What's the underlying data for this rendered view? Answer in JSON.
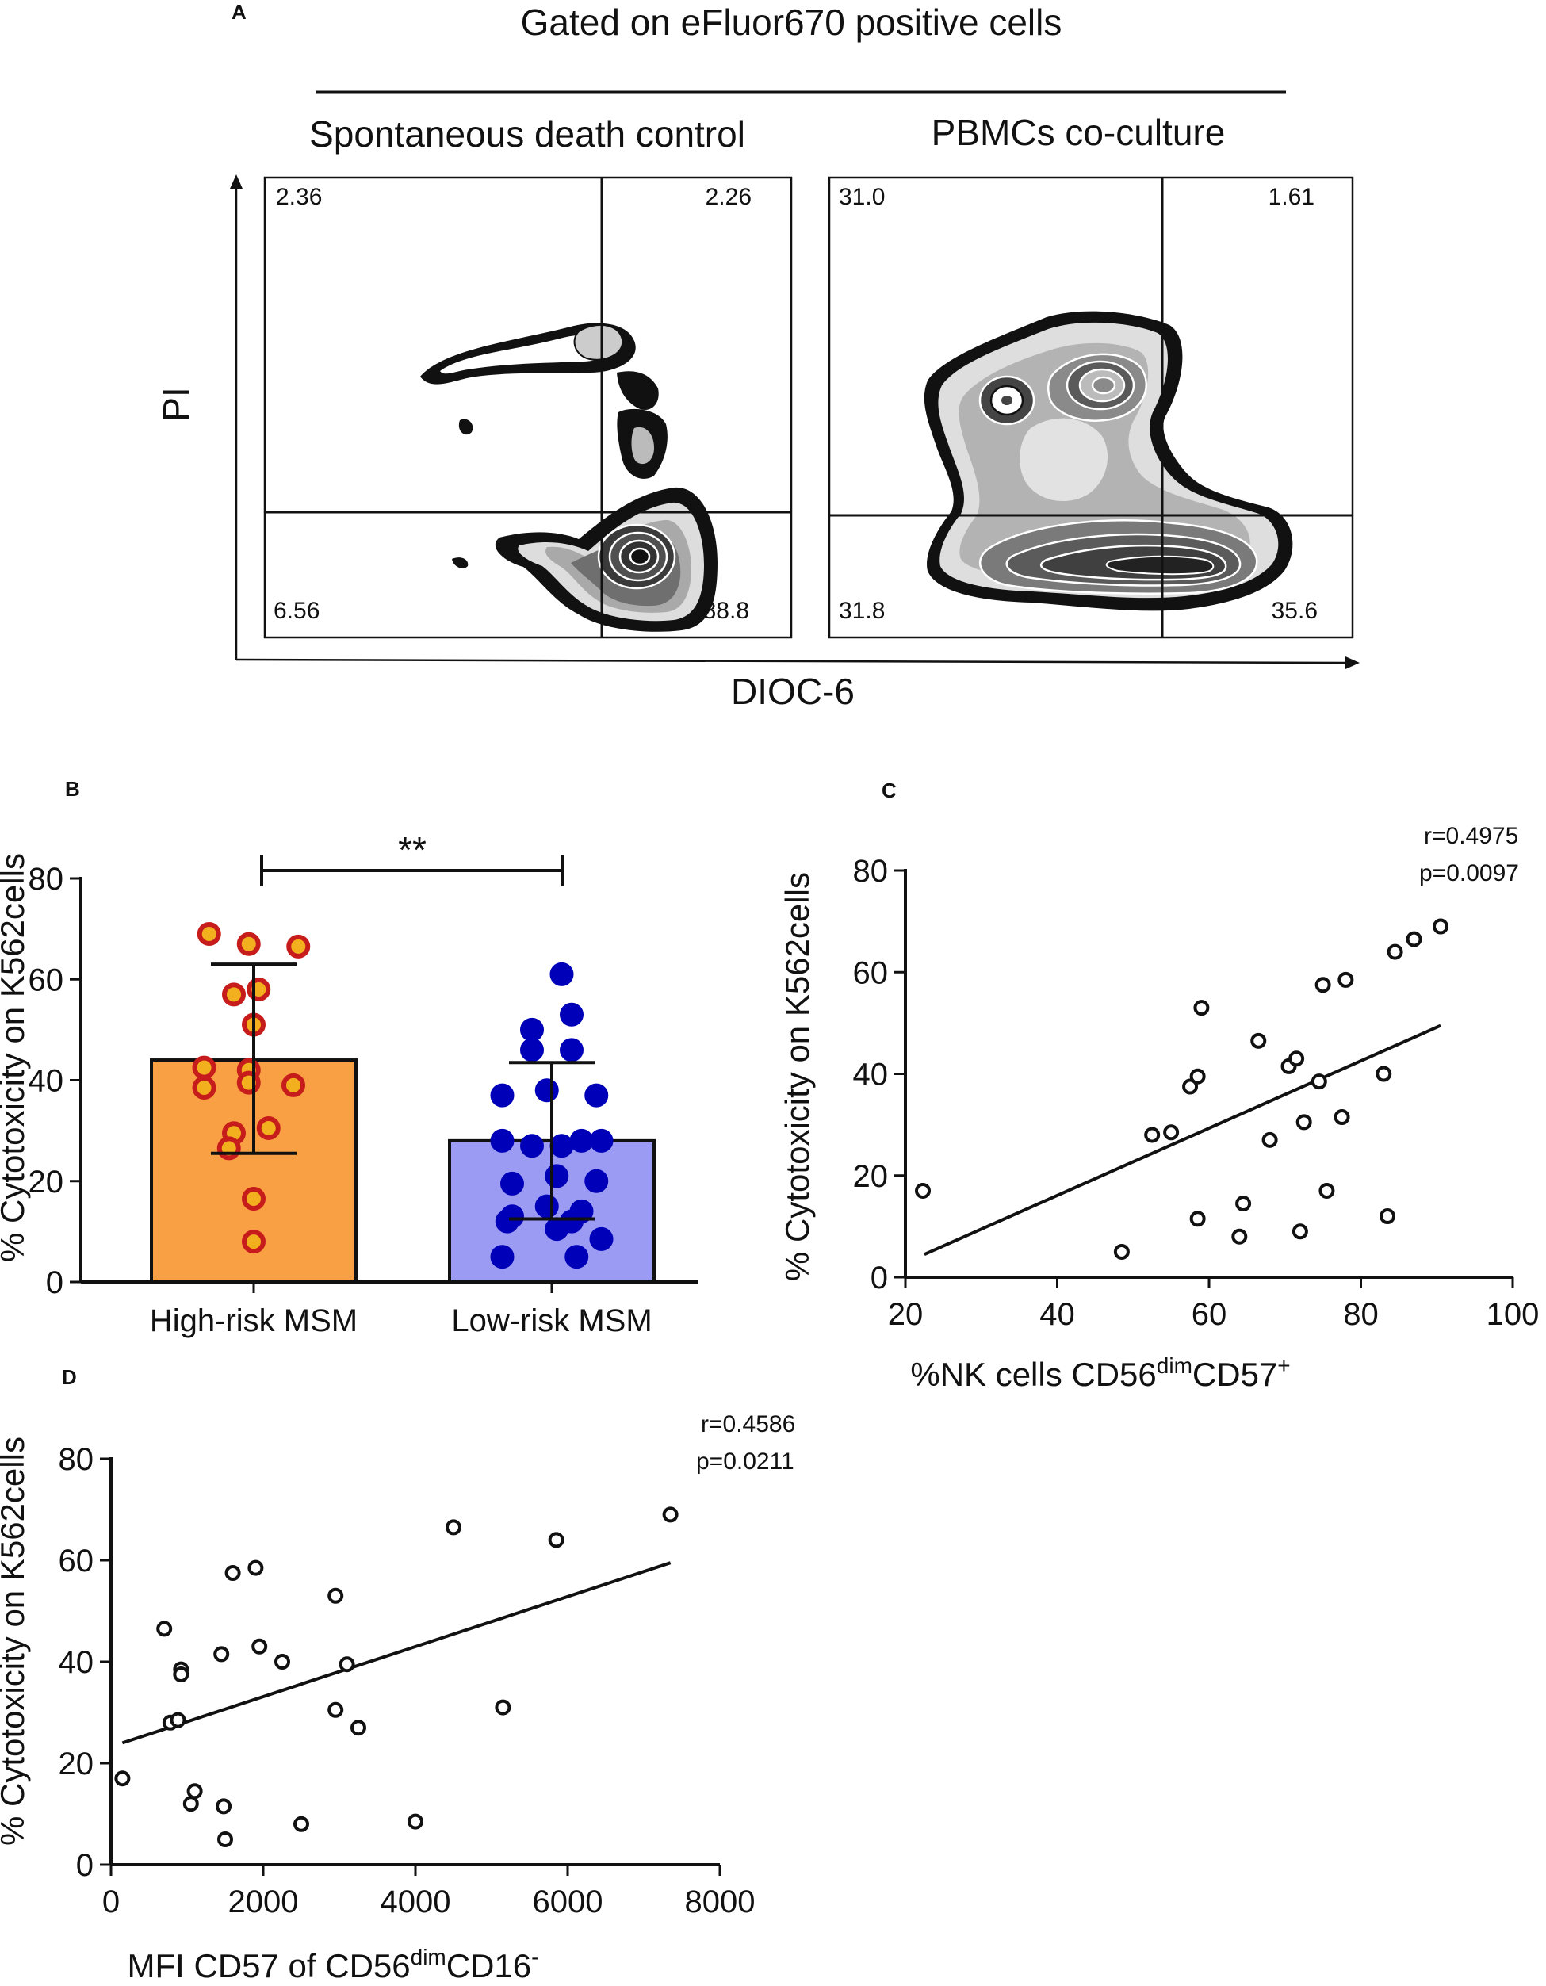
{
  "panel_a": {
    "letter": "A",
    "header": "Gated on eFluor670 positive cells",
    "left_title": "Spontaneous death  control",
    "right_title": "PBMCs co-culture",
    "y_axis": "PI",
    "x_axis": "DIOC-6",
    "left_quadrants": {
      "ul": "2.36",
      "ur": "2.26",
      "ll": "6.56",
      "lr": "88.8"
    },
    "right_quadrants": {
      "ul": "31.0",
      "ur": "1.61",
      "ll": "31.8",
      "lr": "35.6"
    }
  },
  "chart_data": [
    {
      "id": "B",
      "type": "bar",
      "letter": "B",
      "ylabel": "% Cytotoxicity on K562cells",
      "ylim": [
        0,
        80
      ],
      "yticks": [
        "0",
        "20",
        "40",
        "60",
        "80"
      ],
      "categories": [
        "High-risk MSM",
        "Low-risk MSM"
      ],
      "means": [
        44,
        28
      ],
      "sd_low": [
        25.5,
        12.5
      ],
      "sd_high": [
        63,
        43.5
      ],
      "bar_colors": [
        "#f9a044",
        "#9b9bf3"
      ],
      "significance": "**",
      "series": [
        {
          "name": "High-risk MSM",
          "color": "#c71c1c",
          "ring": "#f2b01e",
          "points": [
            [
              -0.45,
              69
            ],
            [
              -0.05,
              67
            ],
            [
              0.45,
              66.5
            ],
            [
              -0.2,
              57
            ],
            [
              0.05,
              58
            ],
            [
              0,
              51
            ],
            [
              -0.5,
              42.5
            ],
            [
              -0.05,
              42
            ],
            [
              -0.5,
              38.5
            ],
            [
              -0.05,
              39.5
            ],
            [
              0.4,
              39
            ],
            [
              0.15,
              30.5
            ],
            [
              -0.2,
              29.5
            ],
            [
              -0.25,
              26.5
            ],
            [
              0,
              16.5
            ],
            [
              0,
              8
            ]
          ]
        },
        {
          "name": "Low-risk MSM",
          "color": "#0000b8",
          "ring": "#0000b8",
          "points": [
            [
              0.1,
              61
            ],
            [
              -0.2,
              50
            ],
            [
              0.2,
              53
            ],
            [
              -0.2,
              46
            ],
            [
              0.2,
              46
            ],
            [
              -0.5,
              37
            ],
            [
              -0.05,
              38
            ],
            [
              0.45,
              37
            ],
            [
              -0.5,
              28
            ],
            [
              0.5,
              28
            ],
            [
              -0.2,
              27
            ],
            [
              0.1,
              27
            ],
            [
              0.3,
              28
            ],
            [
              -0.4,
              19.5
            ],
            [
              0.05,
              21
            ],
            [
              0.45,
              20
            ],
            [
              -0.4,
              13
            ],
            [
              -0.05,
              15
            ],
            [
              0.3,
              14
            ],
            [
              0.05,
              10.5
            ],
            [
              0.5,
              8.5
            ],
            [
              -0.45,
              12
            ],
            [
              0.2,
              12
            ],
            [
              -0.5,
              5
            ],
            [
              0.25,
              5
            ]
          ]
        }
      ]
    },
    {
      "id": "C",
      "type": "scatter",
      "letter": "C",
      "xlabel_main": "%NK cells CD56",
      "xlabel_sup1": "dim",
      "xlabel_mid": "CD57",
      "xlabel_sup2": "+",
      "ylabel": "% Cytotoxicity on K562cells",
      "xlim": [
        20,
        100
      ],
      "ylim": [
        0,
        80
      ],
      "xticks": [
        "20",
        "40",
        "60",
        "80",
        "100"
      ],
      "yticks": [
        "0",
        "20",
        "40",
        "60",
        "80"
      ],
      "r": "r=0.4975",
      "p": "p=0.0097",
      "fit": {
        "x1": 22.5,
        "y1": 4.5,
        "x2": 90.5,
        "y2": 49.5
      },
      "points": [
        [
          22.3,
          17
        ],
        [
          48.5,
          5
        ],
        [
          52.5,
          28
        ],
        [
          55,
          28.5
        ],
        [
          57.5,
          37.5
        ],
        [
          58.5,
          11.5
        ],
        [
          58.5,
          39.5
        ],
        [
          59,
          53
        ],
        [
          64,
          8
        ],
        [
          64.5,
          14.5
        ],
        [
          66.5,
          46.5
        ],
        [
          68,
          27
        ],
        [
          70.5,
          41.5
        ],
        [
          71.5,
          43
        ],
        [
          72,
          9
        ],
        [
          72.5,
          30.5
        ],
        [
          74.5,
          38.5
        ],
        [
          75,
          57.5
        ],
        [
          75.5,
          17
        ],
        [
          77.5,
          31.5
        ],
        [
          78,
          58.5
        ],
        [
          83,
          40
        ],
        [
          83.5,
          12
        ],
        [
          84.5,
          64
        ],
        [
          87,
          66.5
        ],
        [
          90.5,
          69
        ]
      ]
    },
    {
      "id": "D",
      "type": "scatter",
      "letter": "D",
      "xlabel_main": "MFI CD57 of CD56",
      "xlabel_sup1": "dim",
      "xlabel_mid": "CD16",
      "xlabel_sup2": "-",
      "ylabel": "% Cytotoxicity on K562cells",
      "xlim": [
        0,
        8000
      ],
      "ylim": [
        0,
        80
      ],
      "xticks": [
        "0",
        "2000",
        "4000",
        "6000",
        "8000"
      ],
      "yticks": [
        "0",
        "20",
        "40",
        "60",
        "80"
      ],
      "r": "r=0.4586",
      "p": "p=0.0211",
      "fit": {
        "x1": 150,
        "y1": 24,
        "x2": 7350,
        "y2": 59.5
      },
      "points": [
        [
          150,
          17
        ],
        [
          700,
          46.5
        ],
        [
          780,
          28
        ],
        [
          880,
          28.5
        ],
        [
          920,
          38.5
        ],
        [
          920,
          37.5
        ],
        [
          1050,
          12
        ],
        [
          1100,
          14.5
        ],
        [
          1450,
          41.5
        ],
        [
          1480,
          11.5
        ],
        [
          1500,
          5
        ],
        [
          1600,
          57.5
        ],
        [
          1900,
          58.5
        ],
        [
          1950,
          43
        ],
        [
          2250,
          40
        ],
        [
          2500,
          8
        ],
        [
          2950,
          53
        ],
        [
          2950,
          30.5
        ],
        [
          3100,
          39.5
        ],
        [
          3250,
          27
        ],
        [
          4000,
          8.5
        ],
        [
          4500,
          66.5
        ],
        [
          5150,
          31
        ],
        [
          5850,
          64
        ],
        [
          7350,
          69
        ]
      ]
    }
  ]
}
